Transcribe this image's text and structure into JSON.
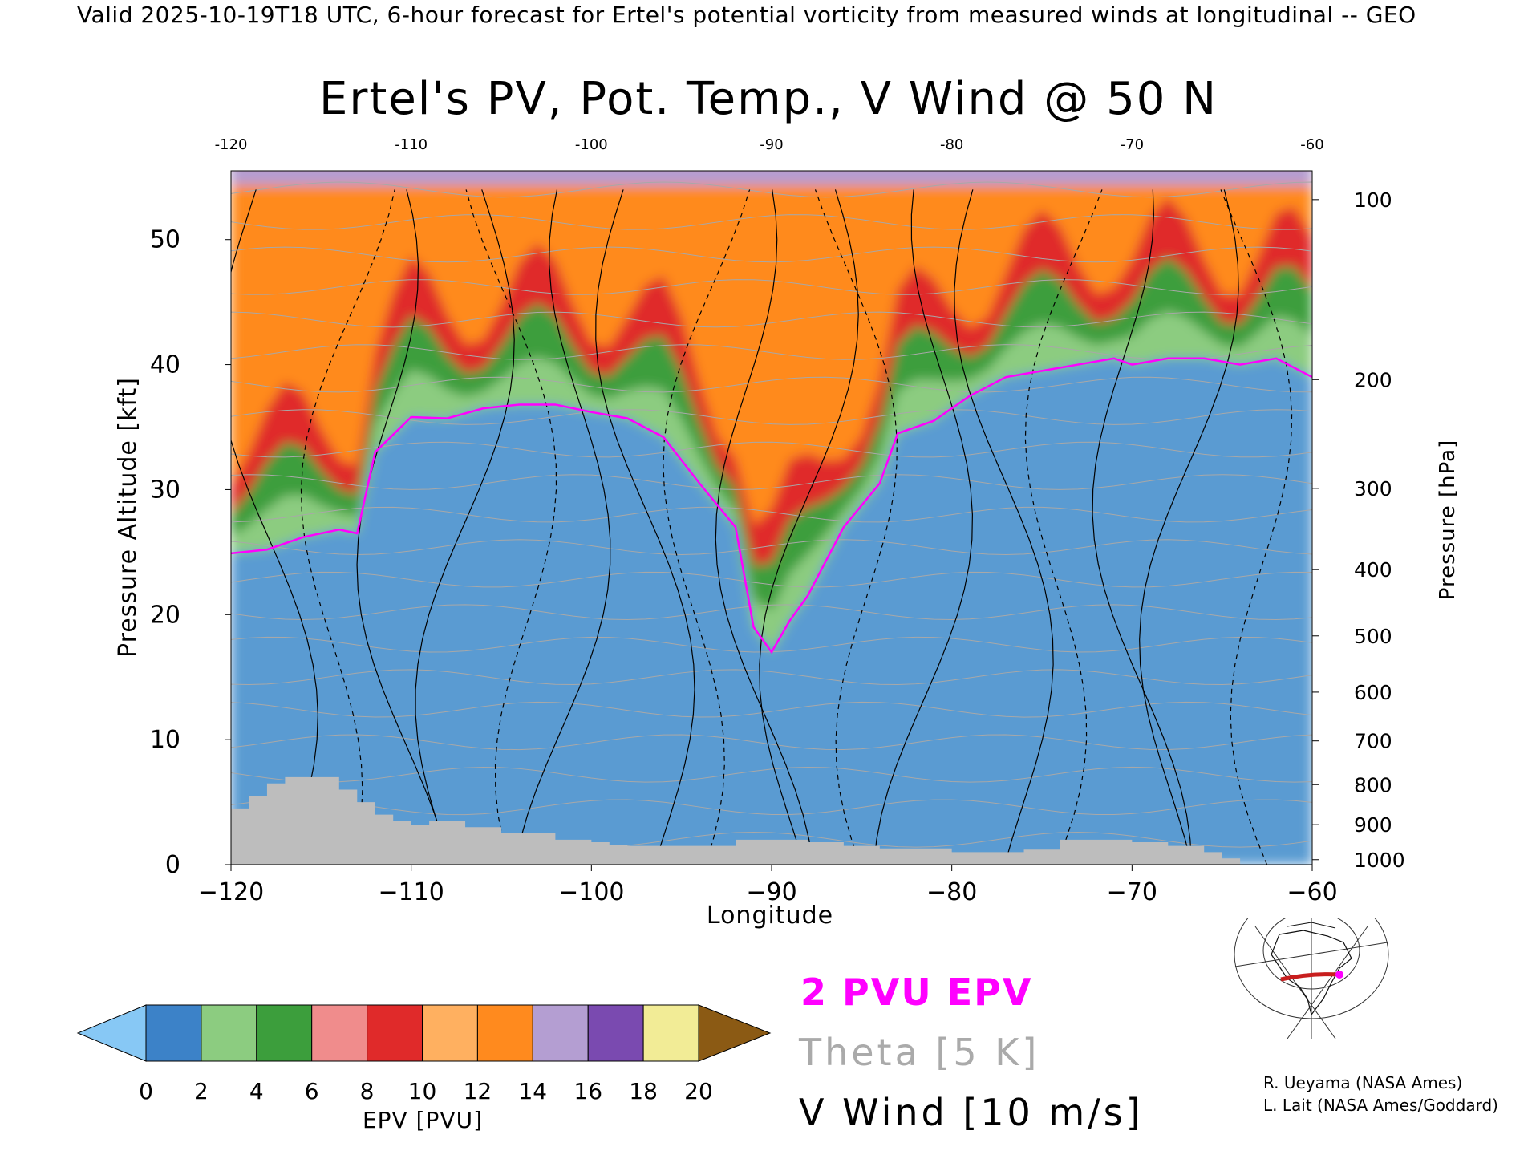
{
  "header": {
    "title": "Valid 2025-10-19T18 UTC, 6-hour forecast for Ertel's potential vorticity from measured winds at longitudinal -- GEO"
  },
  "chart_data": {
    "type": "heatmap",
    "title": "Ertel's PV, Pot. Temp., V Wind @ 50 N",
    "xlabel": "Longitude",
    "ylabel": "Pressure Altitude [kft]",
    "y2label": "Pressure [hPa]",
    "xlim": [
      -120,
      -60
    ],
    "ylim": [
      0,
      55.5
    ],
    "x_ticks": [
      "−120",
      "−110",
      "−100",
      "−90",
      "−80",
      "−70",
      "−60"
    ],
    "x_tick_values": [
      -120,
      -110,
      -100,
      -90,
      -80,
      -70,
      -60
    ],
    "x_top_ticks": [
      "-120",
      "-110",
      "-100",
      "-90",
      "-80",
      "-70",
      "-60"
    ],
    "y_ticks": [
      "0",
      "10",
      "20",
      "30",
      "40",
      "50"
    ],
    "y_tick_values": [
      0,
      10,
      20,
      30,
      40,
      50
    ],
    "pressure_ticks": [
      {
        "label": "100",
        "kft": 53.2
      },
      {
        "label": "200",
        "kft": 38.8
      },
      {
        "label": "300",
        "kft": 30.1
      },
      {
        "label": "400",
        "kft": 23.6
      },
      {
        "label": "500",
        "kft": 18.3
      },
      {
        "label": "600",
        "kft": 13.8
      },
      {
        "label": "700",
        "kft": 9.9
      },
      {
        "label": "800",
        "kft": 6.4
      },
      {
        "label": "900",
        "kft": 3.2
      },
      {
        "label": "1000",
        "kft": 0.4
      }
    ],
    "tropopause_2pvu_kft": [
      [
        -120,
        24.9
      ],
      [
        -118,
        25.2
      ],
      [
        -116,
        26.2
      ],
      [
        -114,
        26.8
      ],
      [
        -113,
        26.5
      ],
      [
        -112,
        33.0
      ],
      [
        -110,
        35.8
      ],
      [
        -108,
        35.7
      ],
      [
        -106,
        36.5
      ],
      [
        -104,
        36.8
      ],
      [
        -102,
        36.8
      ],
      [
        -100,
        36.2
      ],
      [
        -98,
        35.7
      ],
      [
        -96,
        34.2
      ],
      [
        -94,
        30.5
      ],
      [
        -92,
        27.0
      ],
      [
        -91,
        19.0
      ],
      [
        -90,
        17.0
      ],
      [
        -89,
        19.5
      ],
      [
        -88,
        21.5
      ],
      [
        -86,
        27.0
      ],
      [
        -84,
        30.5
      ],
      [
        -83,
        34.5
      ],
      [
        -81,
        35.5
      ],
      [
        -79,
        37.5
      ],
      [
        -77,
        39.0
      ],
      [
        -75,
        39.5
      ],
      [
        -73,
        40.0
      ],
      [
        -71,
        40.5
      ],
      [
        -70,
        40.0
      ],
      [
        -68,
        40.5
      ],
      [
        -66,
        40.5
      ],
      [
        -64,
        40.0
      ],
      [
        -62,
        40.5
      ],
      [
        -60,
        39.0
      ]
    ],
    "terrain_kft": [
      [
        -120,
        4.5
      ],
      [
        -119,
        5.5
      ],
      [
        -118,
        6.5
      ],
      [
        -117,
        7.0
      ],
      [
        -116,
        7.0
      ],
      [
        -115,
        7.0
      ],
      [
        -114,
        6.0
      ],
      [
        -113,
        5.0
      ],
      [
        -112,
        4.0
      ],
      [
        -111,
        3.5
      ],
      [
        -110,
        3.2
      ],
      [
        -109,
        3.5
      ],
      [
        -108,
        3.5
      ],
      [
        -107,
        3.0
      ],
      [
        -106,
        3.0
      ],
      [
        -105,
        2.5
      ],
      [
        -104,
        2.5
      ],
      [
        -103,
        2.5
      ],
      [
        -102,
        2.0
      ],
      [
        -101,
        2.0
      ],
      [
        -100,
        1.8
      ],
      [
        -99,
        1.6
      ],
      [
        -98,
        1.5
      ],
      [
        -96,
        1.5
      ],
      [
        -94,
        1.5
      ],
      [
        -92,
        2.0
      ],
      [
        -90,
        2.0
      ],
      [
        -88,
        1.8
      ],
      [
        -86,
        1.5
      ],
      [
        -84,
        1.3
      ],
      [
        -82,
        1.3
      ],
      [
        -80,
        1.0
      ],
      [
        -78,
        1.0
      ],
      [
        -76,
        1.2
      ],
      [
        -74,
        2.0
      ],
      [
        -72,
        2.0
      ],
      [
        -70,
        1.8
      ],
      [
        -68,
        1.5
      ],
      [
        -66,
        1.0
      ],
      [
        -65,
        0.5
      ],
      [
        -64,
        0
      ]
    ],
    "colorbar": {
      "label": "EPV [PVU]",
      "ticks": [
        "0",
        "2",
        "4",
        "6",
        "8",
        "10",
        "12",
        "14",
        "16",
        "18",
        "20"
      ],
      "colors": [
        "#3c82c8",
        "#8ccc80",
        "#3c9e3c",
        "#f08c8c",
        "#e02a2a",
        "#ffb060",
        "#ff8a1e",
        "#b49ed2",
        "#7a4ab0",
        "#f2ec96"
      ],
      "under_color": "#87c8f5",
      "over_color": "#8b5a14"
    },
    "legend": {
      "position": "bottom",
      "items": [
        {
          "label": "2 PVU EPV",
          "color": "#ff00ff"
        },
        {
          "label": "Theta [5 K]",
          "color": "#aaaaaa"
        },
        {
          "label": "V Wind [10 m/s]",
          "color": "#000000"
        }
      ]
    },
    "colors": {
      "tropopause": "#ff00ff",
      "terrain": "#bdbdbd",
      "theta": "#a8a8a8",
      "wind": "#000000"
    }
  },
  "credits": {
    "line1": "R. Ueyama (NASA Ames)",
    "line2": "L. Lait (NASA Ames/Goddard)"
  },
  "inset_map": {
    "icon": "north-america-map-icon",
    "path_color": "#c81e1e",
    "marker_color": "#ff00ff"
  }
}
